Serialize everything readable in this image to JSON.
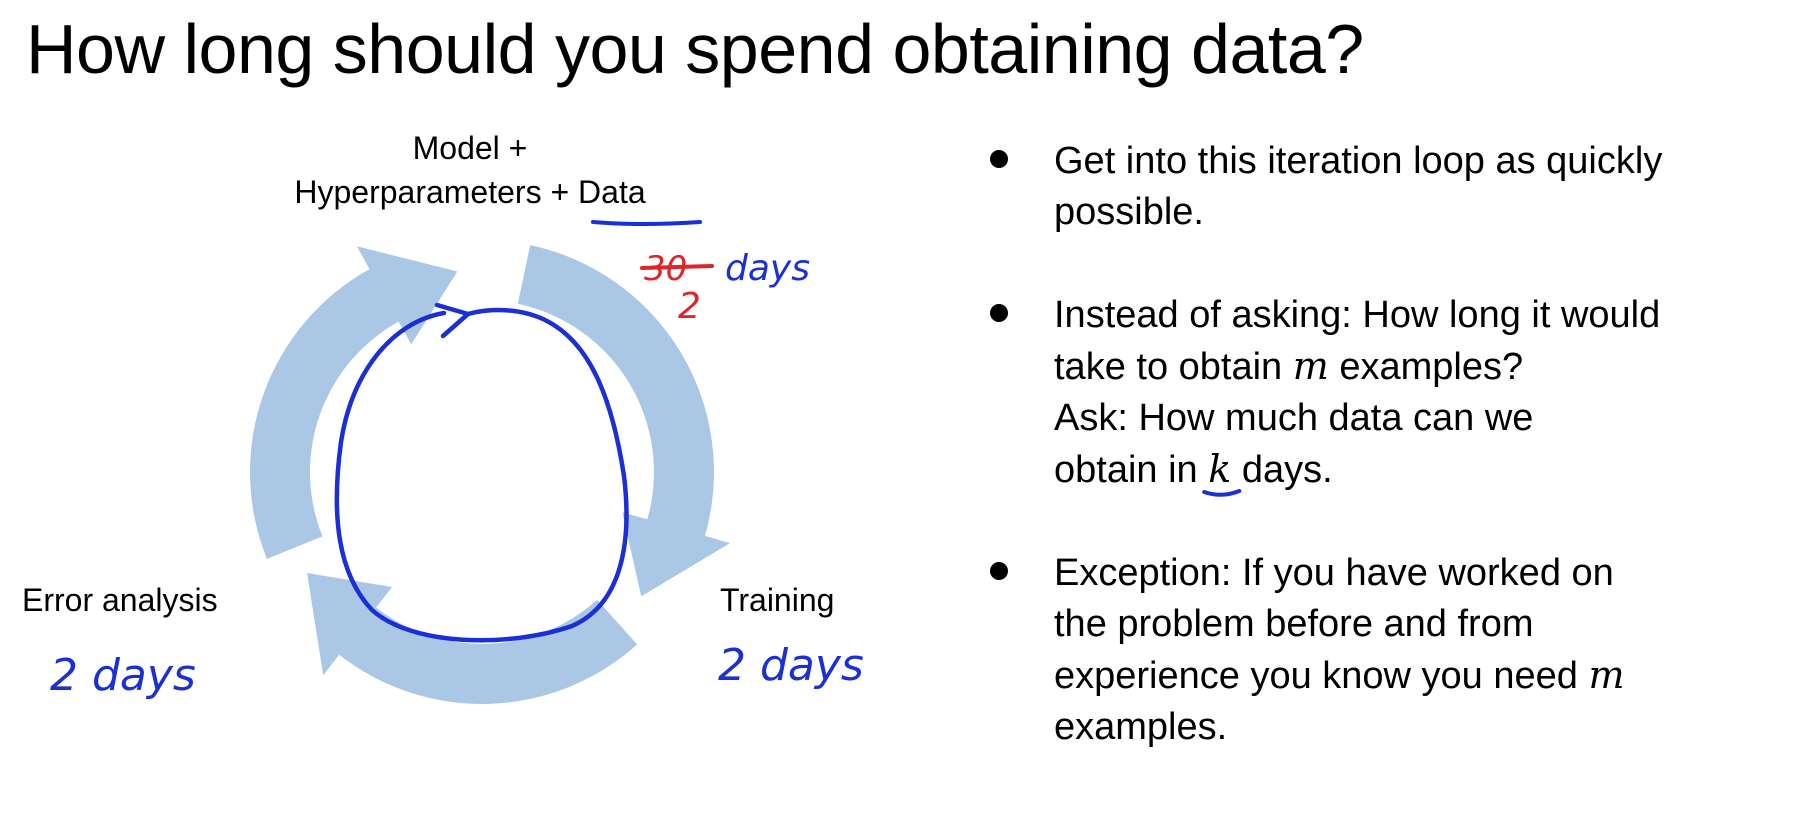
{
  "title": "How long should you spend obtaining data?",
  "diagram": {
    "top_label_line1": "Model +",
    "top_label_line2_prefix": "Hyperparameters + ",
    "top_label_line2_emphasis": "Data",
    "left_label": "Error analysis",
    "right_label": "Training",
    "annotations": {
      "data_days_crossed": "30",
      "data_days_corrected": "2",
      "data_days_unit": "days",
      "error_analysis_days": "2 days",
      "training_days": "2 days"
    },
    "colors": {
      "cycle_arrows": "#aac8e6",
      "pen_blue": "#1a2fd6",
      "pen_red": "#e0252a"
    }
  },
  "bullets": [
    {
      "lines": [
        "Get into this iteration loop as quickly",
        "possible."
      ]
    },
    {
      "q_line1": "Instead of asking: How long it would",
      "q_line2_before": "take to obtain ",
      "q_var": "m",
      "q_line2_after": " examples?",
      "a_line1": "Ask: How much data can we",
      "a_line2_before": "obtain in ",
      "a_var": "k",
      "a_line2_after": " days."
    },
    {
      "line1": "Exception: If you have worked on",
      "line2": "the problem before and from",
      "line3_before": "experience you know you need ",
      "line3_var": "m",
      "line4": "examples."
    }
  ]
}
